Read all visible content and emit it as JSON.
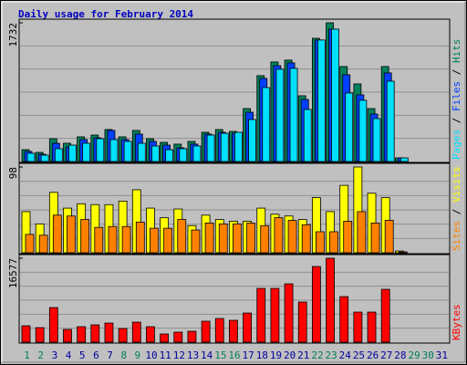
{
  "title": "Daily usage for February 2014",
  "chart_data": [
    {
      "type": "bar",
      "ylim": [
        0,
        1732
      ],
      "yticks": [
        1732
      ],
      "series": [
        {
          "name": "Hits",
          "color": "#00805c",
          "values": [
            148,
            114,
            285,
            228,
            308,
            330,
            399,
            308,
            388,
            285,
            239,
            217,
            251,
            365,
            399,
            376,
            661,
            1072,
            1243,
            1266,
            821,
            1539,
            1732,
            1186,
            969,
            661,
            1186,
            45,
            0,
            0,
            0
          ]
        },
        {
          "name": "Files",
          "color": "#0040ff",
          "values": [
            126,
            91,
            228,
            182,
            274,
            296,
            388,
            274,
            342,
            251,
            205,
            171,
            217,
            342,
            365,
            353,
            615,
            1038,
            1197,
            1232,
            775,
            1517,
            1653,
            1083,
            832,
            593,
            1106,
            45,
            0,
            0,
            0
          ]
        },
        {
          "name": "Pages",
          "color": "#00e0ff",
          "values": [
            103,
            80,
            160,
            205,
            228,
            285,
            274,
            251,
            228,
            194,
            148,
            160,
            194,
            330,
            353,
            365,
            524,
            923,
            1152,
            1163,
            650,
            1517,
            1653,
            855,
            764,
            536,
            1003,
            45,
            0,
            0,
            0
          ]
        }
      ]
    },
    {
      "type": "bar",
      "ylim": [
        0,
        98
      ],
      "yticks": [
        98
      ],
      "series": [
        {
          "name": "Visits",
          "color": "#ffff00",
          "values": [
            47,
            33,
            69,
            51,
            56,
            55,
            55,
            59,
            72,
            51,
            40,
            50,
            31,
            43,
            38,
            36,
            36,
            51,
            44,
            42,
            38,
            63,
            47,
            77,
            98,
            68,
            63,
            2,
            0,
            0,
            0
          ]
        },
        {
          "name": "Sites",
          "color": "#ff8000",
          "values": [
            21,
            20,
            43,
            42,
            38,
            29,
            30,
            30,
            35,
            28,
            28,
            38,
            26,
            34,
            33,
            33,
            34,
            31,
            40,
            37,
            32,
            24,
            24,
            36,
            47,
            34,
            37,
            1,
            0,
            0,
            0
          ]
        }
      ]
    },
    {
      "type": "bar",
      "ylim": [
        0,
        16577
      ],
      "yticks": [
        16577
      ],
      "categories": [
        "1",
        "2",
        "3",
        "4",
        "5",
        "6",
        "7",
        "8",
        "9",
        "10",
        "11",
        "12",
        "13",
        "14",
        "15",
        "16",
        "17",
        "18",
        "19",
        "20",
        "21",
        "22",
        "23",
        "24",
        "25",
        "26",
        "27",
        "28",
        "29",
        "30",
        "31"
      ],
      "category_colors": [
        "#00805c",
        "#00805c",
        "#0000a0",
        "#0000a0",
        "#0000a0",
        "#0000a0",
        "#0000a0",
        "#00805c",
        "#00805c",
        "#0000a0",
        "#0000a0",
        "#0000a0",
        "#0000a0",
        "#0000a0",
        "#00805c",
        "#00805c",
        "#0000a0",
        "#0000a0",
        "#0000a0",
        "#0000a0",
        "#0000a0",
        "#00805c",
        "#00805c",
        "#0000a0",
        "#0000a0",
        "#0000a0",
        "#0000a0",
        "#0000a0",
        "#00805c",
        "#00805c",
        "#0000a0"
      ],
      "series": [
        {
          "name": "KBytes",
          "color": "#ff0000",
          "values": [
            3240,
            2880,
            6840,
            2520,
            3060,
            3420,
            3780,
            2700,
            3960,
            3060,
            1620,
            1980,
            2160,
            4140,
            4680,
            4320,
            5760,
            10620,
            10620,
            11520,
            7920,
            14940,
            16577,
            9000,
            5940,
            5940,
            10440,
            0,
            0,
            0,
            0
          ]
        }
      ]
    }
  ]
}
